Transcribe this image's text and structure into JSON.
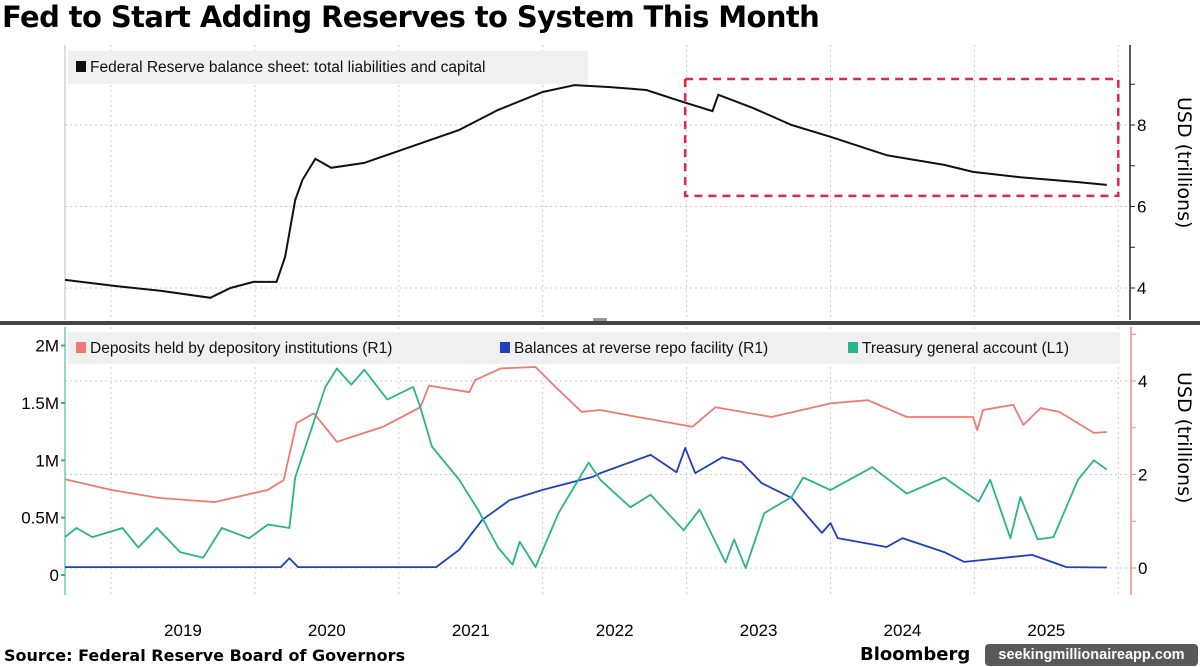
{
  "title": "Fed to Start Adding Reserves to System This Month",
  "source": "Source: Federal Reserve Board of Governors",
  "brand": "Bloomberg",
  "watermark": "seekingmillionaireapp.com",
  "colors": {
    "balance_sheet": "#111111",
    "deposits": "#f07a72",
    "reverse_repo": "#1f3fbf",
    "tga": "#2bb38a",
    "box": "#e0284a",
    "right_axis_bottom": "#f08a8a",
    "left_axis_bottom": "#2bb38a"
  },
  "chart_data": [
    {
      "type": "line",
      "panel": "top",
      "ylabel": "USD (trillions)",
      "y_axis": "right",
      "ylim": [
        3.2,
        9.5
      ],
      "yticks": [
        4,
        6,
        8
      ],
      "grid": true,
      "legend_placement": "top-left",
      "series": [
        {
          "name": "Federal Reserve balance sheet: total liabilities and capital",
          "points": [
            [
              2018.68,
              4.2
            ],
            [
              2019.03,
              4.05
            ],
            [
              2019.35,
              3.93
            ],
            [
              2019.69,
              3.76
            ],
            [
              2019.83,
              4.0
            ],
            [
              2019.99,
              4.15
            ],
            [
              2020.15,
              4.15
            ],
            [
              2020.21,
              4.76
            ],
            [
              2020.28,
              6.16
            ],
            [
              2020.33,
              6.65
            ],
            [
              2020.42,
              7.17
            ],
            [
              2020.53,
              6.95
            ],
            [
              2020.76,
              7.07
            ],
            [
              2020.98,
              7.34
            ],
            [
              2021.42,
              7.88
            ],
            [
              2021.69,
              8.37
            ],
            [
              2022.0,
              8.81
            ],
            [
              2022.22,
              8.98
            ],
            [
              2022.47,
              8.93
            ],
            [
              2022.72,
              8.86
            ],
            [
              2022.98,
              8.56
            ],
            [
              2023.18,
              8.34
            ],
            [
              2023.22,
              8.74
            ],
            [
              2023.46,
              8.42
            ],
            [
              2023.73,
              8.0
            ],
            [
              2024.0,
              7.71
            ],
            [
              2024.39,
              7.26
            ],
            [
              2024.79,
              7.02
            ],
            [
              2024.99,
              6.85
            ],
            [
              2025.32,
              6.72
            ],
            [
              2025.72,
              6.6
            ],
            [
              2025.92,
              6.53
            ]
          ]
        }
      ],
      "annotations": [
        {
          "type": "dashed-box",
          "x": [
            2022.99,
            2026.0
          ],
          "y": [
            6.26,
            9.13
          ]
        }
      ]
    },
    {
      "type": "line",
      "panel": "bottom",
      "ylabel": "USD (trillions)",
      "left_ylim": [
        -0.1,
        2.05
      ],
      "left_yticks": [
        0,
        0.5,
        1,
        1.5,
        2
      ],
      "left_ytick_labels": [
        "0",
        "0.5M",
        "1M",
        "1.5M",
        "2M"
      ],
      "right_ylim": [
        -0.5,
        5.2
      ],
      "right_yticks": [
        0,
        2,
        4
      ],
      "grid": true,
      "legend_placement": "top",
      "xticks": [
        "2019",
        "2020",
        "2021",
        "2022",
        "2023",
        "2024",
        "2025"
      ],
      "xlim": [
        2018.68,
        2026.06
      ],
      "series": [
        {
          "name": "Deposits held by depository institutions (R1)",
          "axis": "right",
          "points": [
            [
              2018.68,
              1.9
            ],
            [
              2019.0,
              1.67
            ],
            [
              2019.33,
              1.5
            ],
            [
              2019.72,
              1.41
            ],
            [
              2020.09,
              1.67
            ],
            [
              2020.2,
              1.88
            ],
            [
              2020.29,
              3.1
            ],
            [
              2020.41,
              3.31
            ],
            [
              2020.57,
              2.7
            ],
            [
              2020.89,
              3.02
            ],
            [
              2021.15,
              3.44
            ],
            [
              2021.21,
              3.9
            ],
            [
              2021.49,
              3.76
            ],
            [
              2021.53,
              4.02
            ],
            [
              2021.71,
              4.27
            ],
            [
              2021.95,
              4.3
            ],
            [
              2022.09,
              3.87
            ],
            [
              2022.27,
              3.34
            ],
            [
              2022.4,
              3.38
            ],
            [
              2022.66,
              3.23
            ],
            [
              2023.04,
              3.02
            ],
            [
              2023.2,
              3.44
            ],
            [
              2023.59,
              3.23
            ],
            [
              2024.0,
              3.52
            ],
            [
              2024.26,
              3.59
            ],
            [
              2024.53,
              3.23
            ],
            [
              2024.99,
              3.23
            ],
            [
              2025.02,
              2.95
            ],
            [
              2025.06,
              3.38
            ],
            [
              2025.27,
              3.49
            ],
            [
              2025.34,
              3.06
            ],
            [
              2025.46,
              3.42
            ],
            [
              2025.59,
              3.34
            ],
            [
              2025.83,
              2.89
            ],
            [
              2025.92,
              2.91
            ]
          ]
        },
        {
          "name": "Balances at reverse repo facility (R1)",
          "axis": "right",
          "points": [
            [
              2018.68,
              0.02
            ],
            [
              2020.18,
              0.02
            ],
            [
              2020.24,
              0.21
            ],
            [
              2020.3,
              0.02
            ],
            [
              2021.26,
              0.02
            ],
            [
              2021.42,
              0.39
            ],
            [
              2021.58,
              1.03
            ],
            [
              2021.77,
              1.45
            ],
            [
              2022.0,
              1.67
            ],
            [
              2022.35,
              1.95
            ],
            [
              2022.4,
              2.03
            ],
            [
              2022.75,
              2.42
            ],
            [
              2022.93,
              2.05
            ],
            [
              2022.99,
              2.57
            ],
            [
              2023.06,
              2.03
            ],
            [
              2023.25,
              2.37
            ],
            [
              2023.38,
              2.27
            ],
            [
              2023.52,
              1.82
            ],
            [
              2023.73,
              1.5
            ],
            [
              2023.94,
              0.75
            ],
            [
              2024.0,
              0.96
            ],
            [
              2024.05,
              0.64
            ],
            [
              2024.39,
              0.45
            ],
            [
              2024.5,
              0.64
            ],
            [
              2024.79,
              0.34
            ],
            [
              2024.93,
              0.13
            ],
            [
              2025.4,
              0.28
            ],
            [
              2025.64,
              0.02
            ],
            [
              2025.92,
              0.01
            ]
          ]
        },
        {
          "name": "Treasury general account  (L1)",
          "axis": "left",
          "points": [
            [
              2018.68,
              0.33
            ],
            [
              2018.76,
              0.41
            ],
            [
              2018.87,
              0.33
            ],
            [
              2019.08,
              0.41
            ],
            [
              2019.19,
              0.24
            ],
            [
              2019.32,
              0.41
            ],
            [
              2019.48,
              0.2
            ],
            [
              2019.64,
              0.15
            ],
            [
              2019.77,
              0.41
            ],
            [
              2019.96,
              0.32
            ],
            [
              2020.09,
              0.44
            ],
            [
              2020.24,
              0.41
            ],
            [
              2020.28,
              0.85
            ],
            [
              2020.36,
              1.15
            ],
            [
              2020.49,
              1.64
            ],
            [
              2020.57,
              1.8
            ],
            [
              2020.67,
              1.66
            ],
            [
              2020.76,
              1.79
            ],
            [
              2020.92,
              1.53
            ],
            [
              2021.1,
              1.64
            ],
            [
              2021.15,
              1.46
            ],
            [
              2021.23,
              1.12
            ],
            [
              2021.42,
              0.83
            ],
            [
              2021.55,
              0.57
            ],
            [
              2021.69,
              0.24
            ],
            [
              2021.79,
              0.09
            ],
            [
              2021.84,
              0.29
            ],
            [
              2021.95,
              0.07
            ],
            [
              2022.11,
              0.54
            ],
            [
              2022.32,
              0.98
            ],
            [
              2022.4,
              0.83
            ],
            [
              2022.61,
              0.59
            ],
            [
              2022.75,
              0.7
            ],
            [
              2022.98,
              0.39
            ],
            [
              2023.09,
              0.57
            ],
            [
              2023.27,
              0.11
            ],
            [
              2023.33,
              0.31
            ],
            [
              2023.41,
              0.06
            ],
            [
              2023.54,
              0.54
            ],
            [
              2023.73,
              0.68
            ],
            [
              2023.81,
              0.85
            ],
            [
              2024.0,
              0.74
            ],
            [
              2024.29,
              0.94
            ],
            [
              2024.53,
              0.71
            ],
            [
              2024.79,
              0.85
            ],
            [
              2025.03,
              0.64
            ],
            [
              2025.11,
              0.83
            ],
            [
              2025.25,
              0.32
            ],
            [
              2025.32,
              0.68
            ],
            [
              2025.44,
              0.31
            ],
            [
              2025.55,
              0.33
            ],
            [
              2025.72,
              0.83
            ],
            [
              2025.83,
              1.0
            ],
            [
              2025.92,
              0.92
            ]
          ]
        }
      ]
    }
  ]
}
